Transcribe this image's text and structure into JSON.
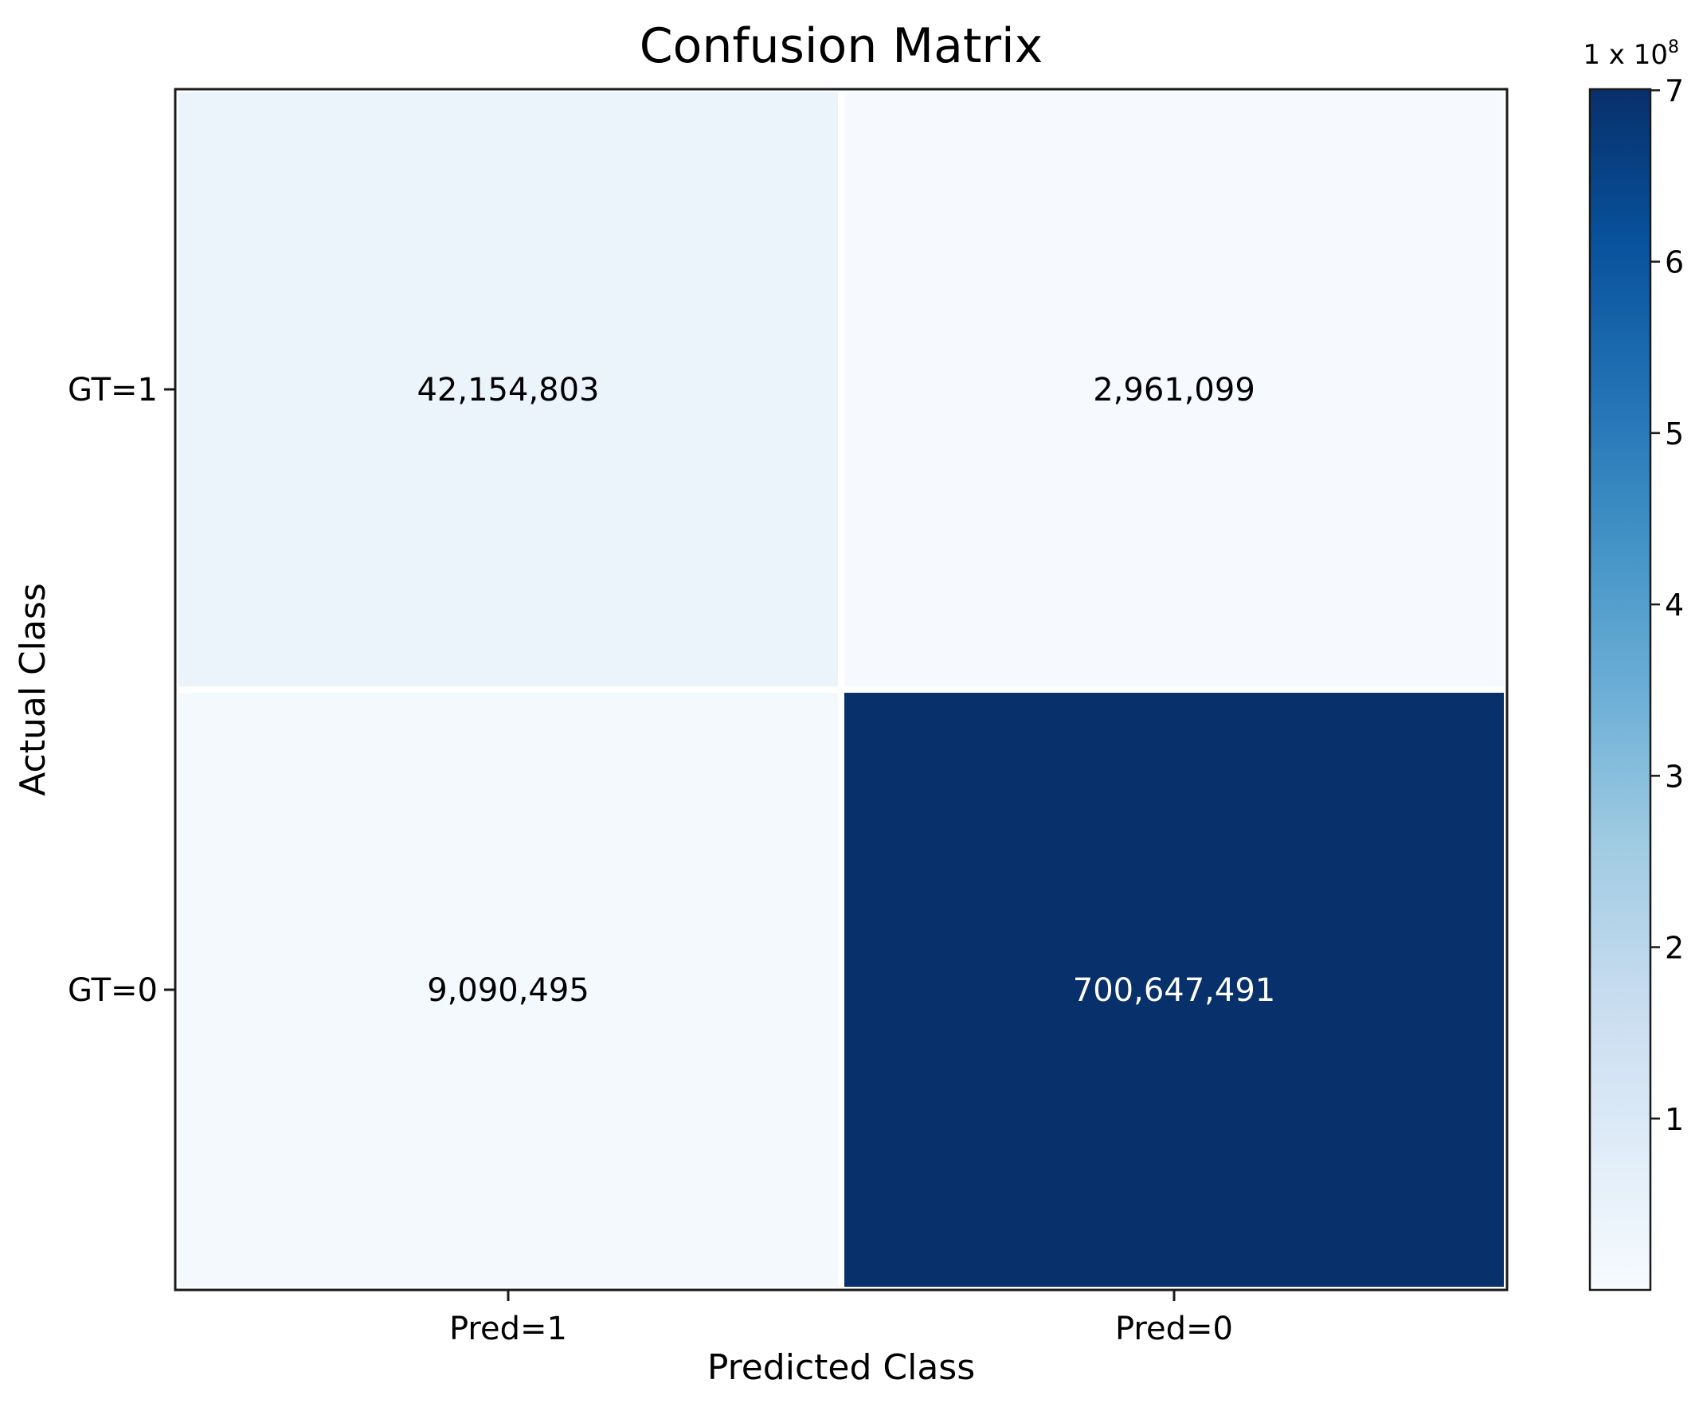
{
  "chart_data": {
    "type": "heatmap",
    "title": "Confusion Matrix",
    "xlabel": "Predicted Class",
    "ylabel": "Actual Class",
    "x_categories": [
      "Pred=1",
      "Pred=0"
    ],
    "y_categories": [
      "GT=1",
      "GT=0"
    ],
    "cells": [
      {
        "row": 0,
        "col": 0,
        "value": 42154803,
        "label": "42,154,803"
      },
      {
        "row": 0,
        "col": 1,
        "value": 2961099,
        "label": "2,961,099"
      },
      {
        "row": 1,
        "col": 0,
        "value": 9090495,
        "label": "9,090,495"
      },
      {
        "row": 1,
        "col": 1,
        "value": 700647491,
        "label": "700,647,491"
      }
    ],
    "colorbar": {
      "colormap": "Blues",
      "range": [
        0,
        700647491
      ],
      "ticks": [
        1,
        2,
        3,
        4,
        5,
        6,
        7
      ],
      "tick_labels": [
        "1",
        "2",
        "3",
        "4",
        "5",
        "6",
        "7"
      ],
      "multiplier_prefix": "1 x 10",
      "multiplier_exp": "8",
      "tick_scale": 100000000
    },
    "colors": [
      "#f7fbff",
      "#deebf7",
      "#c6dbef",
      "#9ecae1",
      "#6baed6",
      "#4292c6",
      "#2171b5",
      "#08519c",
      "#08306b"
    ]
  }
}
